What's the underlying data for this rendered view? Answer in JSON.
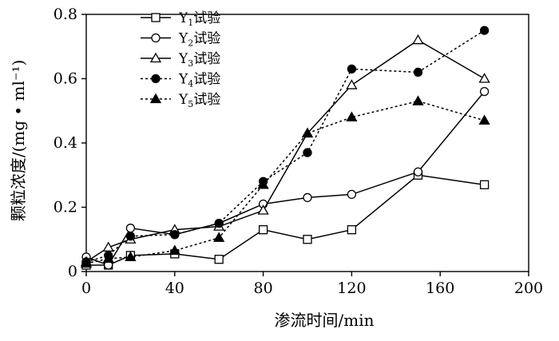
{
  "chart_data": {
    "type": "line",
    "xlabel": "渗流时间/min",
    "ylabel": "颗粒浓度/(mg • ml⁻¹)",
    "xlim": [
      0,
      200
    ],
    "ylim": [
      0,
      0.8
    ],
    "xticks": [
      0,
      40,
      80,
      120,
      160,
      200
    ],
    "yticks": [
      0,
      0.2,
      0.4,
      0.6,
      0.8
    ],
    "xtick_labels": [
      "0",
      "40",
      "80",
      "120",
      "160",
      "200"
    ],
    "ytick_labels": [
      "0",
      "0.2",
      "0.4",
      "0.6",
      "0.8"
    ],
    "grid": false,
    "legend_position": "top-left",
    "series": [
      {
        "name": "Y1试验",
        "sub": "1",
        "marker": "square-open",
        "line": "solid",
        "x": [
          0,
          10,
          20,
          40,
          60,
          80,
          100,
          120,
          150,
          180
        ],
        "y": [
          0.02,
          0.02,
          0.05,
          0.055,
          0.038,
          0.13,
          0.1,
          0.13,
          0.3,
          0.27
        ]
      },
      {
        "name": "Y2试验",
        "sub": "2",
        "marker": "circle-open",
        "line": "solid",
        "x": [
          0,
          10,
          20,
          40,
          60,
          80,
          100,
          120,
          150,
          180
        ],
        "y": [
          0.045,
          0.02,
          0.135,
          0.115,
          0.15,
          0.21,
          0.23,
          0.24,
          0.31,
          0.56
        ]
      },
      {
        "name": "Y3试验",
        "sub": "3",
        "marker": "triangle-open",
        "line": "solid",
        "x": [
          0,
          10,
          20,
          40,
          60,
          80,
          100,
          120,
          150,
          180
        ],
        "y": [
          0.03,
          0.075,
          0.1,
          0.13,
          0.14,
          0.19,
          0.43,
          0.58,
          0.72,
          0.6
        ]
      },
      {
        "name": "Y4试验",
        "sub": "4",
        "marker": "circle-filled",
        "line": "dotted",
        "x": [
          0,
          10,
          20,
          40,
          60,
          80,
          100,
          120,
          150,
          180
        ],
        "y": [
          0.03,
          0.05,
          0.11,
          0.115,
          0.15,
          0.28,
          0.37,
          0.63,
          0.62,
          0.75
        ]
      },
      {
        "name": "Y5试验",
        "sub": "5",
        "marker": "triangle-filled",
        "line": "dotted",
        "x": [
          0,
          10,
          20,
          40,
          60,
          80,
          100,
          120,
          150,
          180
        ],
        "y": [
          0.025,
          0.04,
          0.045,
          0.065,
          0.105,
          0.27,
          0.43,
          0.48,
          0.53,
          0.47
        ]
      }
    ]
  }
}
